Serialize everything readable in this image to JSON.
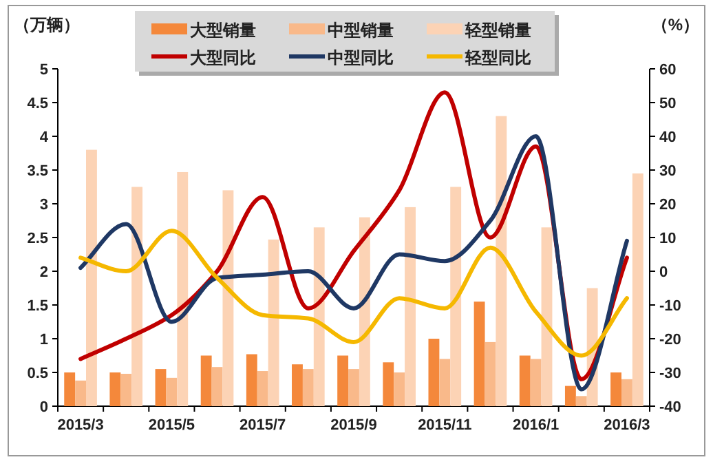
{
  "chart_data": {
    "type": "bar",
    "ylabel": "（万辆）",
    "y2label": "（%）",
    "categories": [
      "2015/3",
      null,
      "2015/5",
      null,
      "2015/7",
      null,
      "2015/9",
      null,
      "2015/11",
      null,
      "2016/1",
      null,
      "2016/3"
    ],
    "series": [
      {
        "name": "大型销量",
        "axis": "y",
        "color": "#f4883b",
        "values": [
          0.5,
          0.5,
          0.55,
          0.75,
          0.77,
          0.62,
          0.75,
          0.65,
          1.0,
          1.55,
          0.75,
          0.3,
          0.5
        ]
      },
      {
        "name": "中型销量",
        "axis": "y",
        "color": "#f9b98a",
        "values": [
          0.38,
          0.48,
          0.42,
          0.58,
          0.52,
          0.55,
          0.55,
          0.5,
          0.7,
          0.95,
          0.7,
          0.15,
          0.4
        ]
      },
      {
        "name": "轻型销量",
        "axis": "y",
        "color": "#fcd3b5",
        "values": [
          3.8,
          3.25,
          3.47,
          3.2,
          2.47,
          2.65,
          2.8,
          2.95,
          3.25,
          4.3,
          2.65,
          1.75,
          3.45
        ]
      },
      {
        "name": "大型同比",
        "type": "line",
        "axis": "y2",
        "color": "#c00000",
        "values": [
          -26,
          -20,
          -13,
          0,
          22,
          -11,
          6,
          24,
          53,
          10,
          37,
          -32,
          4
        ]
      },
      {
        "name": "中型同比",
        "type": "line",
        "axis": "y2",
        "color": "#1f3864",
        "values": [
          1,
          14,
          -15,
          -2,
          -1,
          0,
          -11,
          5,
          3,
          15,
          40,
          -35,
          9
        ]
      },
      {
        "name": "轻型同比",
        "type": "line",
        "axis": "y2",
        "color": "#f5b800",
        "values": [
          4,
          0,
          12,
          -2,
          -13,
          -14,
          -21,
          -8,
          -11,
          7,
          -12,
          -25,
          -8
        ]
      }
    ],
    "ylim": [
      0,
      5
    ],
    "yticks": [
      0,
      0.5,
      1,
      1.5,
      2,
      2.5,
      3,
      3.5,
      4,
      4.5,
      5
    ],
    "y2lim": [
      -40,
      60
    ],
    "y2ticks": [
      -40,
      -30,
      -20,
      -10,
      0,
      10,
      20,
      30,
      40,
      50,
      60
    ],
    "legend": "top"
  }
}
